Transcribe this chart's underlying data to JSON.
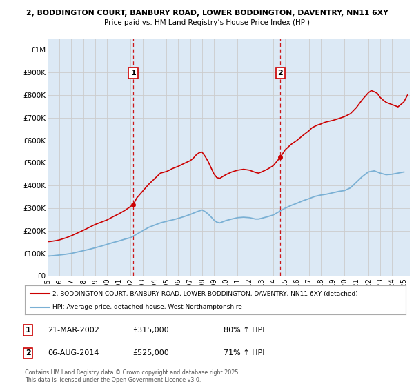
{
  "title_line1": "2, BODDINGTON COURT, BANBURY ROAD, LOWER BODDINGTON, DAVENTRY, NN11 6XY",
  "title_line2": "Price paid vs. HM Land Registry’s House Price Index (HPI)",
  "ylim": [
    0,
    1050000
  ],
  "yticks": [
    0,
    100000,
    200000,
    300000,
    400000,
    500000,
    600000,
    700000,
    800000,
    900000,
    1000000
  ],
  "ytick_labels": [
    "£0",
    "£100K",
    "£200K",
    "£300K",
    "£400K",
    "£500K",
    "£600K",
    "£700K",
    "£800K",
    "£900K",
    "£1M"
  ],
  "sale1_date_x": 2002.21,
  "sale1_price": 315000,
  "sale1_label": "1",
  "sale1_date_str": "21-MAR-2002",
  "sale1_price_str": "£315,000",
  "sale1_hpi_str": "80% ↑ HPI",
  "sale2_date_x": 2014.59,
  "sale2_price": 525000,
  "sale2_label": "2",
  "sale2_date_str": "06-AUG-2014",
  "sale2_price_str": "£525,000",
  "sale2_hpi_str": "71% ↑ HPI",
  "line_color_property": "#cc0000",
  "line_color_hpi": "#7ab0d4",
  "vline_color": "#cc0000",
  "grid_color": "#cccccc",
  "chart_bg_color": "#dce9f5",
  "background_color": "#ffffff",
  "legend_label_property": "2, BODDINGTON COURT, BANBURY ROAD, LOWER BODDINGTON, DAVENTRY, NN11 6XY (detached)",
  "legend_label_hpi": "HPI: Average price, detached house, West Northamptonshire",
  "footnote": "Contains HM Land Registry data © Crown copyright and database right 2025.\nThis data is licensed under the Open Government Licence v3.0.",
  "xmin": 1995.0,
  "xmax": 2025.5,
  "hpi_years": [
    1995.0,
    1995.5,
    1996.0,
    1996.5,
    1997.0,
    1997.5,
    1998.0,
    1998.5,
    1999.0,
    1999.5,
    2000.0,
    2000.5,
    2001.0,
    2001.5,
    2002.0,
    2002.5,
    2003.0,
    2003.5,
    2004.0,
    2004.5,
    2005.0,
    2005.5,
    2006.0,
    2006.5,
    2007.0,
    2007.5,
    2008.0,
    2008.25,
    2008.5,
    2008.75,
    2009.0,
    2009.25,
    2009.5,
    2009.75,
    2010.0,
    2010.5,
    2011.0,
    2011.5,
    2012.0,
    2012.25,
    2012.5,
    2012.75,
    2013.0,
    2013.5,
    2014.0,
    2014.5,
    2015.0,
    2015.5,
    2016.0,
    2016.5,
    2017.0,
    2017.5,
    2018.0,
    2018.5,
    2019.0,
    2019.5,
    2020.0,
    2020.5,
    2021.0,
    2021.5,
    2022.0,
    2022.5,
    2023.0,
    2023.5,
    2024.0,
    2024.5,
    2025.0
  ],
  "hpi_values": [
    88000,
    90000,
    93000,
    96000,
    100000,
    106000,
    112000,
    118000,
    125000,
    132000,
    140000,
    148000,
    155000,
    163000,
    170000,
    185000,
    200000,
    215000,
    225000,
    235000,
    242000,
    248000,
    255000,
    263000,
    272000,
    283000,
    292000,
    285000,
    275000,
    262000,
    248000,
    238000,
    235000,
    240000,
    245000,
    252000,
    258000,
    260000,
    258000,
    255000,
    252000,
    252000,
    255000,
    262000,
    270000,
    285000,
    300000,
    312000,
    322000,
    333000,
    342000,
    352000,
    358000,
    362000,
    368000,
    374000,
    378000,
    390000,
    415000,
    440000,
    460000,
    465000,
    455000,
    448000,
    450000,
    455000,
    460000
  ],
  "prop_years": [
    1995.0,
    1995.25,
    1995.5,
    1995.75,
    1996.0,
    1996.5,
    1997.0,
    1997.5,
    1998.0,
    1998.5,
    1999.0,
    1999.5,
    2000.0,
    2000.5,
    2001.0,
    2001.5,
    2002.0,
    2002.21,
    2002.5,
    2003.0,
    2003.5,
    2004.0,
    2004.5,
    2005.0,
    2005.25,
    2005.5,
    2006.0,
    2006.5,
    2007.0,
    2007.25,
    2007.5,
    2007.75,
    2008.0,
    2008.25,
    2008.5,
    2008.75,
    2009.0,
    2009.25,
    2009.5,
    2009.75,
    2010.0,
    2010.5,
    2011.0,
    2011.5,
    2012.0,
    2012.25,
    2012.5,
    2012.75,
    2013.0,
    2013.5,
    2014.0,
    2014.59,
    2015.0,
    2015.5,
    2016.0,
    2016.5,
    2017.0,
    2017.25,
    2017.5,
    2017.75,
    2018.0,
    2018.25,
    2018.5,
    2018.75,
    2019.0,
    2019.5,
    2020.0,
    2020.5,
    2021.0,
    2021.5,
    2022.0,
    2022.25,
    2022.5,
    2022.75,
    2023.0,
    2023.25,
    2023.5,
    2024.0,
    2024.5,
    2025.0,
    2025.3
  ],
  "prop_values": [
    152000,
    153000,
    155000,
    157000,
    160000,
    168000,
    178000,
    190000,
    202000,
    215000,
    228000,
    238000,
    248000,
    262000,
    275000,
    290000,
    308000,
    315000,
    345000,
    375000,
    405000,
    430000,
    455000,
    462000,
    468000,
    475000,
    485000,
    498000,
    510000,
    520000,
    535000,
    545000,
    548000,
    530000,
    508000,
    480000,
    452000,
    435000,
    432000,
    440000,
    448000,
    460000,
    468000,
    472000,
    468000,
    463000,
    458000,
    455000,
    460000,
    472000,
    488000,
    525000,
    558000,
    582000,
    600000,
    622000,
    642000,
    655000,
    662000,
    668000,
    672000,
    678000,
    682000,
    685000,
    688000,
    696000,
    705000,
    718000,
    745000,
    780000,
    810000,
    820000,
    815000,
    808000,
    790000,
    778000,
    768000,
    758000,
    748000,
    770000,
    800000
  ]
}
